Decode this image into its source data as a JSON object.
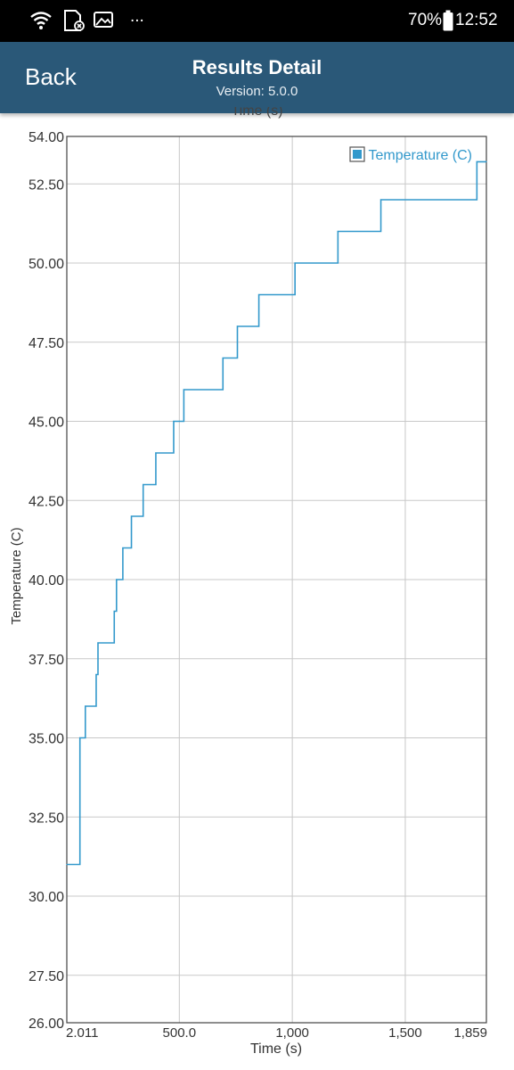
{
  "status_bar": {
    "battery": "70%",
    "time": "12:52",
    "overflow": "...",
    "icons": [
      "wifi-icon",
      "sd-card-icon",
      "image-icon",
      "battery-icon"
    ]
  },
  "app_bar": {
    "back_label": "Back",
    "title": "Results Detail",
    "subtitle": "Version: 5.0.0"
  },
  "colors": {
    "app_bar": "#2a5878",
    "series": "#3399cc",
    "grid": "#c8c8c8"
  },
  "chart_data": {
    "type": "line",
    "step": true,
    "top_label": "Time (s)",
    "xlabel": "Time (s)",
    "ylabel": "Temperature (C)",
    "xlim": [
      2.011,
      1859
    ],
    "ylim": [
      26.0,
      54.0
    ],
    "x_ticks": [
      {
        "value": 2.011,
        "label": "2.011"
      },
      {
        "value": 500,
        "label": "500.0"
      },
      {
        "value": 1000,
        "label": "1,000"
      },
      {
        "value": 1500,
        "label": "1,500"
      },
      {
        "value": 1859,
        "label": "1,859"
      }
    ],
    "y_ticks": [
      {
        "value": 54.0,
        "label": "54.00"
      },
      {
        "value": 52.5,
        "label": "52.50"
      },
      {
        "value": 50.0,
        "label": "50.00"
      },
      {
        "value": 47.5,
        "label": "47.50"
      },
      {
        "value": 45.0,
        "label": "45.00"
      },
      {
        "value": 42.5,
        "label": "42.50"
      },
      {
        "value": 40.0,
        "label": "40.00"
      },
      {
        "value": 37.5,
        "label": "37.50"
      },
      {
        "value": 35.0,
        "label": "35.00"
      },
      {
        "value": 32.5,
        "label": "32.50"
      },
      {
        "value": 30.0,
        "label": "30.00"
      },
      {
        "value": 27.5,
        "label": "27.50"
      },
      {
        "value": 26.0,
        "label": "26.00"
      }
    ],
    "grid": true,
    "legend_position": "top-right",
    "series": [
      {
        "name": "Temperature (C)",
        "color": "#3399cc",
        "x": [
          2.011,
          60,
          84,
          132,
          140,
          212,
          222,
          250,
          288,
          340,
          396,
          475,
          520,
          693,
          757,
          852,
          1012,
          1202,
          1392,
          1817,
          1859
        ],
        "y": [
          31,
          35,
          36,
          37,
          38,
          39,
          40,
          41,
          42,
          43,
          44,
          45,
          46,
          47,
          48,
          49,
          50,
          51,
          52,
          53.2,
          53.2
        ]
      }
    ]
  }
}
